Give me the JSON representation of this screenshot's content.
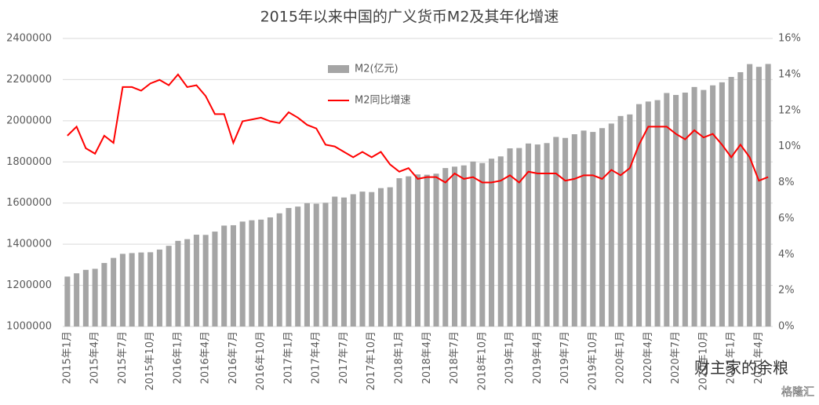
{
  "chart_data": {
    "type": "bar-line",
    "title": "2015年以来中国的广义货币M2及其年化增速",
    "categories": [
      "2015年1月",
      null,
      null,
      "2015年4月",
      null,
      null,
      "2015年7月",
      null,
      null,
      "2015年10月",
      null,
      null,
      "2016年1月",
      null,
      null,
      "2016年4月",
      null,
      null,
      "2016年7月",
      null,
      null,
      "2016年10月",
      null,
      null,
      "2017年1月",
      null,
      null,
      "2017年4月",
      null,
      null,
      "2017年7月",
      null,
      null,
      "2017年10月",
      null,
      null,
      "2018年1月",
      null,
      null,
      "2018年4月",
      null,
      null,
      "2018年7月",
      null,
      null,
      "2018年10月",
      null,
      null,
      "2019年1月",
      null,
      null,
      "2019年4月",
      null,
      null,
      "2019年7月",
      null,
      null,
      "2019年10月",
      null,
      null,
      "2020年1月",
      null,
      null,
      "2020年4月",
      null,
      null,
      "2020年7月",
      null,
      null,
      "2020年10月",
      null,
      null,
      "2021年1月",
      null,
      null,
      "2021年4月",
      null
    ],
    "series": [
      {
        "name": "M2(亿元)",
        "type": "bar",
        "color": "#a5a5a5",
        "values": [
          1242710,
          1258590,
          1275330,
          1280560,
          1308700,
          1333380,
          1353210,
          1356940,
          1359820,
          1361020,
          1373960,
          1392280,
          1416320,
          1424620,
          1446180,
          1445260,
          1461300,
          1490490,
          1492240,
          1510000,
          1516360,
          1519530,
          1530400,
          1550070,
          1575930,
          1582940,
          1599560,
          1596880,
          1601420,
          1631280,
          1627050,
          1642950,
          1655650,
          1653410,
          1672600,
          1676770,
          1720810,
          1729910,
          1739210,
          1737680,
          1742720,
          1770180,
          1776960,
          1783100,
          1801670,
          1794590,
          1815720,
          1826740,
          1865940,
          1867430,
          1889410,
          1884670,
          1891540,
          1921360,
          1916580,
          1934550,
          1952250,
          1945600,
          1964150,
          1986490,
          2023070,
          2030800,
          2080900,
          2093500,
          2100200,
          2134900,
          2125500,
          2136800,
          2164100,
          2149700,
          2172100,
          2186800,
          2213000,
          2236000,
          2275500,
          2262100,
          2276000
        ]
      },
      {
        "name": "M2同比增速",
        "type": "line",
        "axis": "y2",
        "color": "#ff0000",
        "values": [
          10.6,
          11.1,
          9.9,
          9.6,
          10.6,
          10.2,
          13.3,
          13.3,
          13.1,
          13.5,
          13.7,
          13.4,
          14.0,
          13.3,
          13.4,
          12.8,
          11.8,
          11.8,
          10.2,
          11.4,
          11.5,
          11.6,
          11.4,
          11.3,
          11.9,
          11.6,
          11.2,
          11.0,
          10.1,
          10.0,
          9.7,
          9.4,
          9.7,
          9.4,
          9.7,
          9.0,
          8.6,
          8.8,
          8.2,
          8.3,
          8.3,
          8.0,
          8.5,
          8.2,
          8.3,
          8.0,
          8.0,
          8.1,
          8.4,
          8.0,
          8.6,
          8.5,
          8.5,
          8.5,
          8.1,
          8.2,
          8.4,
          8.4,
          8.2,
          8.7,
          8.4,
          8.8,
          10.1,
          11.1,
          11.1,
          11.1,
          10.7,
          10.4,
          10.9,
          10.5,
          10.7,
          10.1,
          9.4,
          10.1,
          9.4,
          8.1,
          8.3
        ]
      }
    ],
    "ylim": [
      1000000,
      2400000
    ],
    "yticks": [
      1000000,
      1200000,
      1400000,
      1600000,
      1800000,
      2000000,
      2200000,
      2400000
    ],
    "y2lim": [
      0,
      16
    ],
    "y2ticks": [
      {
        "value": 0,
        "label": "0%"
      },
      {
        "value": 2,
        "label": "2%"
      },
      {
        "value": 4,
        "label": "4%"
      },
      {
        "value": 6,
        "label": "6%"
      },
      {
        "value": 8,
        "label": "8%"
      },
      {
        "value": 10,
        "label": "10%"
      },
      {
        "value": 12,
        "label": "12%"
      },
      {
        "value": 14,
        "label": "14%"
      },
      {
        "value": 16,
        "label": "16%"
      }
    ],
    "grid": true,
    "legend": "top",
    "annotations": [
      "财主家的余粮",
      "格隆汇"
    ]
  }
}
